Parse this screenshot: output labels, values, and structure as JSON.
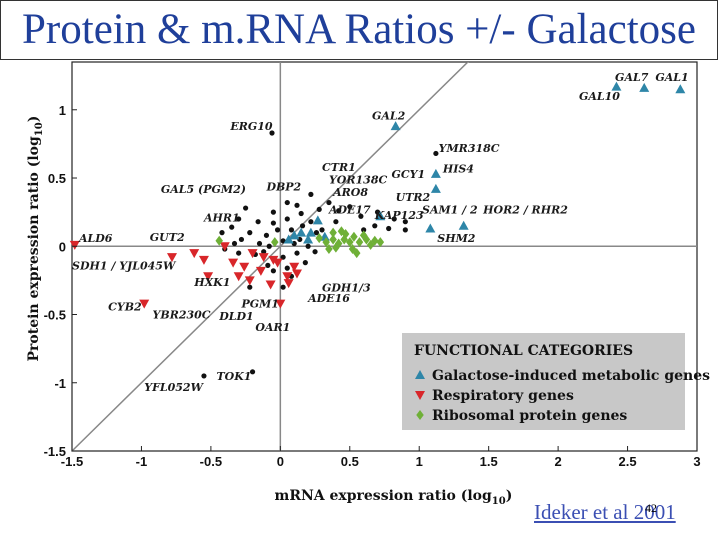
{
  "title": "Protein & m.RNA Ratios +/- Galactose",
  "citation": "Ideker et al 2001",
  "slide_number": "42",
  "colors": {
    "title": "#1f3f9a",
    "galactose": "#2e86a8",
    "respiratory": "#d8262a",
    "ribosomal": "#6fb037",
    "other": "#111111",
    "legend_bg": "#c8c8c8"
  },
  "chart_data": {
    "type": "scatter",
    "xlabel_main": "mRNA expression ratio (log",
    "xlabel_sub": "10",
    "xlabel_end": ")",
    "ylabel_main": "Protein expression ratio (log",
    "ylabel_sub": "10",
    "ylabel_end": ")",
    "xlim": [
      -1.5,
      3.0
    ],
    "ylim": [
      -1.5,
      1.35
    ],
    "x_ticks": [
      {
        "v": -1.5,
        "label": "-1.5"
      },
      {
        "v": -1,
        "label": "-1"
      },
      {
        "v": -0.5,
        "label": "-0.5"
      },
      {
        "v": 0,
        "label": "0"
      },
      {
        "v": 0.5,
        "label": "0.5"
      },
      {
        "v": 1,
        "label": "1"
      },
      {
        "v": 1.5,
        "label": "1.5"
      },
      {
        "v": 2,
        "label": "2"
      },
      {
        "v": 2.5,
        "label": "2.5"
      },
      {
        "v": 3,
        "label": "3"
      }
    ],
    "y_ticks": [
      {
        "v": 1,
        "label": "1"
      },
      {
        "v": 0.5,
        "label": "0.5"
      },
      {
        "v": 0,
        "label": "0"
      },
      {
        "v": -0.5,
        "label": "-0.5"
      },
      {
        "v": -1,
        "label": "-1"
      },
      {
        "v": -1.5,
        "label": "-1.5"
      }
    ],
    "legend": {
      "title": "FUNCTIONAL CATEGORIES",
      "items": [
        {
          "label": "Galactose-induced metabolic genes",
          "color": "#2e86a8",
          "shape": "triangle-up"
        },
        {
          "label": "Respiratory genes",
          "color": "#d8262a",
          "shape": "triangle-down"
        },
        {
          "label": "Ribosomal protein genes",
          "color": "#6fb037",
          "shape": "diamond"
        }
      ]
    },
    "series": [
      {
        "name": "Galactose-induced metabolic genes",
        "shape": "triangle-up",
        "color": "#2e86a8",
        "points": [
          [
            2.42,
            1.17
          ],
          [
            2.62,
            1.16
          ],
          [
            2.88,
            1.15
          ],
          [
            0.83,
            0.88
          ],
          [
            1.12,
            0.53
          ],
          [
            1.12,
            0.42
          ],
          [
            1.08,
            0.13
          ],
          [
            1.32,
            0.15
          ],
          [
            0.72,
            0.22
          ],
          [
            0.27,
            0.19
          ],
          [
            0.1,
            0.08
          ],
          [
            0.15,
            0.1
          ],
          [
            0.22,
            0.1
          ],
          [
            0.06,
            0.05
          ],
          [
            0.32,
            0.07
          ],
          [
            0.2,
            0.05
          ]
        ]
      },
      {
        "name": "Respiratory genes",
        "shape": "triangle-down",
        "color": "#d8262a",
        "points": [
          [
            -1.48,
            0.01
          ],
          [
            -0.98,
            -0.42
          ],
          [
            -0.52,
            -0.22
          ],
          [
            -0.34,
            -0.12
          ],
          [
            -0.22,
            -0.25
          ],
          [
            0.06,
            -0.27
          ],
          [
            -0.12,
            -0.08
          ],
          [
            -0.14,
            -0.18
          ],
          [
            -0.05,
            -0.1
          ],
          [
            -0.07,
            -0.28
          ],
          [
            -0.3,
            -0.22
          ],
          [
            -0.4,
            0.0
          ],
          [
            0.05,
            -0.22
          ],
          [
            -0.02,
            -0.12
          ],
          [
            0.12,
            -0.2
          ],
          [
            -0.2,
            -0.05
          ],
          [
            -0.55,
            -0.1
          ],
          [
            -0.62,
            -0.05
          ],
          [
            -0.78,
            -0.08
          ],
          [
            0.0,
            -0.42
          ],
          [
            -0.26,
            -0.15
          ],
          [
            0.1,
            -0.15
          ]
        ]
      },
      {
        "name": "Ribosomal protein genes",
        "shape": "diamond",
        "color": "#6fb037",
        "points": [
          [
            -0.44,
            0.04
          ],
          [
            -0.04,
            0.03
          ],
          [
            0.28,
            0.06
          ],
          [
            0.33,
            0.03
          ],
          [
            0.38,
            0.05
          ],
          [
            0.42,
            0.02
          ],
          [
            0.46,
            0.05
          ],
          [
            0.5,
            0.03
          ],
          [
            0.53,
            0.07
          ],
          [
            0.57,
            0.03
          ],
          [
            0.62,
            0.05
          ],
          [
            0.68,
            0.04
          ],
          [
            0.72,
            0.03
          ],
          [
            0.52,
            -0.02
          ],
          [
            0.4,
            -0.01
          ],
          [
            0.47,
            0.09
          ],
          [
            0.6,
            0.08
          ],
          [
            0.35,
            -0.02
          ],
          [
            0.55,
            -0.05
          ],
          [
            0.65,
            0.01
          ],
          [
            0.44,
            0.11
          ],
          [
            0.38,
            0.1
          ]
        ]
      },
      {
        "name": "Other genes",
        "shape": "dot",
        "color": "#111111",
        "points": [
          [
            -0.06,
            0.83
          ],
          [
            -0.55,
            -0.95
          ],
          [
            -0.2,
            -0.92
          ],
          [
            -0.3,
            0.2
          ],
          [
            -0.16,
            0.18
          ],
          [
            -0.05,
            0.17
          ],
          [
            0.05,
            0.2
          ],
          [
            0.12,
            0.3
          ],
          [
            -0.1,
            0.08
          ],
          [
            -0.22,
            0.1
          ],
          [
            -0.28,
            0.05
          ],
          [
            -0.33,
            0.02
          ],
          [
            -0.15,
            0.02
          ],
          [
            -0.08,
            0.0
          ],
          [
            0.02,
            0.04
          ],
          [
            0.08,
            0.12
          ],
          [
            0.16,
            0.15
          ],
          [
            -0.02,
            0.12
          ],
          [
            0.2,
            0.0
          ],
          [
            0.12,
            -0.05
          ],
          [
            0.02,
            -0.08
          ],
          [
            -0.18,
            -0.06
          ],
          [
            -0.3,
            -0.05
          ],
          [
            -0.12,
            -0.04
          ],
          [
            0.05,
            -0.16
          ],
          [
            0.18,
            -0.12
          ],
          [
            0.25,
            -0.04
          ],
          [
            0.3,
            0.12
          ],
          [
            -0.42,
            0.1
          ],
          [
            -0.35,
            0.14
          ],
          [
            -0.05,
            0.25
          ],
          [
            0.15,
            0.24
          ],
          [
            0.28,
            0.27
          ],
          [
            0.42,
            0.26
          ],
          [
            0.58,
            0.22
          ],
          [
            0.68,
            0.15
          ],
          [
            0.78,
            0.13
          ],
          [
            0.9,
            0.12
          ],
          [
            0.5,
            0.29
          ],
          [
            0.35,
            0.32
          ],
          [
            0.22,
            0.38
          ],
          [
            0.05,
            0.32
          ],
          [
            -0.25,
            0.28
          ],
          [
            1.12,
            0.68
          ],
          [
            0.9,
            0.18
          ],
          [
            0.7,
            0.25
          ],
          [
            0.1,
            0.02
          ],
          [
            0.22,
            0.18
          ],
          [
            -0.4,
            -0.02
          ],
          [
            -0.05,
            -0.18
          ],
          [
            0.08,
            -0.22
          ],
          [
            0.02,
            -0.3
          ],
          [
            -0.22,
            -0.3
          ],
          [
            -0.09,
            -0.14
          ],
          [
            0.14,
            0.05
          ],
          [
            0.26,
            0.1
          ],
          [
            0.4,
            0.18
          ],
          [
            0.6,
            0.12
          ],
          [
            0.82,
            0.2
          ]
        ]
      }
    ],
    "annotations": [
      {
        "text": "GAL7",
        "pos": [
          2.41,
          1.21
        ]
      },
      {
        "text": "GAL1",
        "pos": [
          2.7,
          1.21
        ]
      },
      {
        "text": "GAL10",
        "pos": [
          2.15,
          1.07
        ]
      },
      {
        "text": "GAL2",
        "pos": [
          0.66,
          0.93
        ]
      },
      {
        "text": "ERG10",
        "pos": [
          -0.36,
          0.85
        ]
      },
      {
        "text": "YMR318C",
        "pos": [
          1.14,
          0.69
        ]
      },
      {
        "text": "HIS4",
        "pos": [
          1.17,
          0.54
        ]
      },
      {
        "text": "CTR1",
        "pos": [
          0.3,
          0.55
        ]
      },
      {
        "text": "YOR138C",
        "pos": [
          0.35,
          0.46
        ]
      },
      {
        "text": "GCY1",
        "pos": [
          0.8,
          0.5
        ]
      },
      {
        "text": "ARO8",
        "pos": [
          0.38,
          0.37
        ]
      },
      {
        "text": "GAL5 (PGM2)",
        "pos": [
          -0.86,
          0.39
        ]
      },
      {
        "text": "DBP2",
        "pos": [
          -0.1,
          0.41
        ]
      },
      {
        "text": "UTR2",
        "pos": [
          0.83,
          0.33
        ]
      },
      {
        "text": "ADE17",
        "pos": [
          0.35,
          0.24
        ]
      },
      {
        "text": "SAM1 / 2",
        "pos": [
          1.02,
          0.24
        ]
      },
      {
        "text": "HOR2 / RHR2",
        "pos": [
          1.46,
          0.24
        ]
      },
      {
        "text": "KAP123",
        "pos": [
          0.68,
          0.2
        ]
      },
      {
        "text": "AHR1",
        "pos": [
          -0.55,
          0.18
        ]
      },
      {
        "text": "GUT2",
        "pos": [
          -0.94,
          0.04
        ]
      },
      {
        "text": "ALD6",
        "pos": [
          -1.45,
          0.03
        ]
      },
      {
        "text": "SHM2",
        "pos": [
          1.13,
          0.03
        ]
      },
      {
        "text": "SDH1 / YJL045W",
        "pos": [
          -1.5,
          -0.17
        ]
      },
      {
        "text": "HXK1",
        "pos": [
          -0.62,
          -0.29
        ]
      },
      {
        "text": "GDH1/3",
        "pos": [
          0.3,
          -0.33
        ]
      },
      {
        "text": "ADE16",
        "pos": [
          0.2,
          -0.41
        ]
      },
      {
        "text": "CYB2",
        "pos": [
          -1.24,
          -0.47
        ]
      },
      {
        "text": "PGM1",
        "pos": [
          -0.28,
          -0.45
        ]
      },
      {
        "text": "YBR230C",
        "pos": [
          -0.92,
          -0.53
        ]
      },
      {
        "text": "DLD1",
        "pos": [
          -0.44,
          -0.54
        ]
      },
      {
        "text": "OAR1",
        "pos": [
          -0.18,
          -0.62
        ]
      },
      {
        "text": "TOK1",
        "pos": [
          -0.46,
          -0.98
        ]
      },
      {
        "text": "YFL052W",
        "pos": [
          -0.98,
          -1.06
        ]
      }
    ]
  }
}
